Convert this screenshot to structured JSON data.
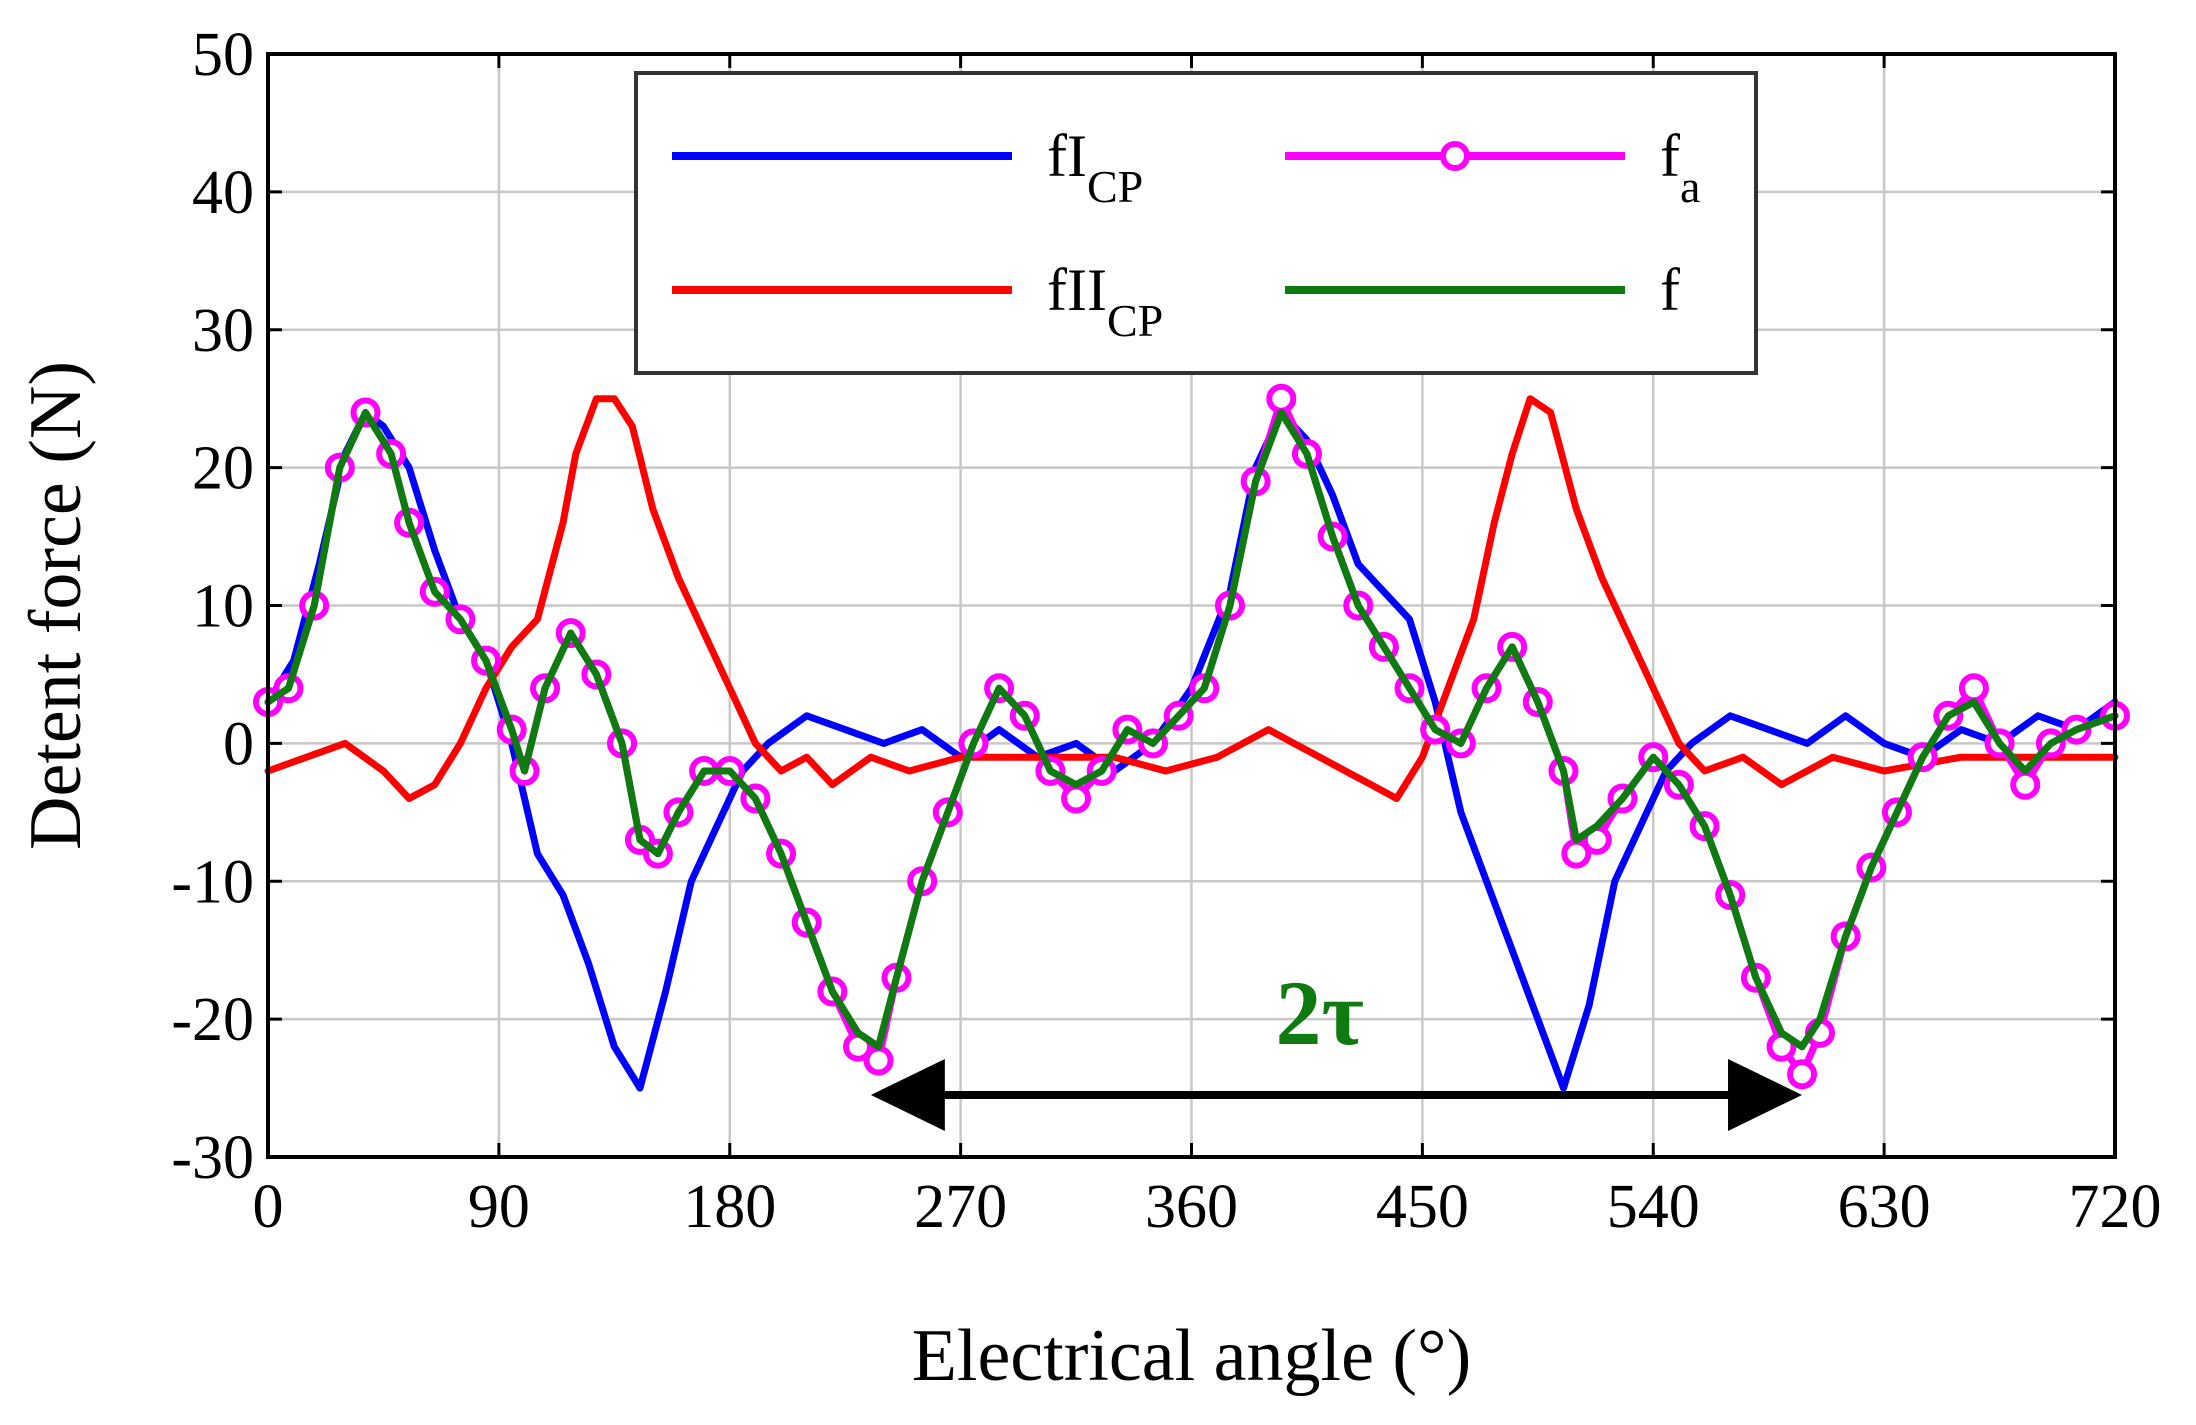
{
  "chart_data": {
    "type": "line",
    "title": "",
    "xlabel": "Electrical angle (°)",
    "ylabel": "Detent force (N)",
    "xlim": [
      0,
      720
    ],
    "ylim": [
      -30,
      50
    ],
    "xticks": [
      0,
      90,
      180,
      270,
      360,
      450,
      540,
      630,
      720
    ],
    "yticks": [
      -30,
      -20,
      -10,
      0,
      10,
      20,
      30,
      40,
      50
    ],
    "grid": true,
    "legend_position": "top-center",
    "series": [
      {
        "name": "fI",
        "subscript": "CP",
        "color": "#0000ff",
        "marker": "none",
        "x": [
          0,
          10,
          20,
          30,
          38,
          45,
          55,
          65,
          75,
          85,
          95,
          105,
          115,
          125,
          135,
          145,
          155,
          165,
          175,
          185,
          195,
          210,
          225,
          240,
          255,
          270,
          285,
          300,
          315,
          330,
          345,
          360,
          375,
          385,
          395,
          405,
          415,
          425,
          435,
          445,
          455,
          465,
          475,
          485,
          495,
          505,
          515,
          525,
          535,
          545,
          555,
          570,
          585,
          600,
          615,
          630,
          645,
          660,
          675,
          690,
          705,
          720
        ],
        "y": [
          3,
          6,
          13,
          21,
          24,
          23,
          20,
          14,
          9,
          6,
          0,
          -8,
          -11,
          -16,
          -22,
          -25,
          -18,
          -10,
          -6,
          -2,
          0,
          2,
          1,
          0,
          1,
          -1,
          1,
          -1,
          0,
          -2,
          0,
          4,
          11,
          20,
          24,
          22,
          18,
          13,
          11,
          9,
          3,
          -5,
          -10,
          -15,
          -20,
          -25,
          -19,
          -10,
          -6,
          -2,
          0,
          2,
          1,
          0,
          2,
          0,
          -1,
          1,
          0,
          2,
          1,
          3
        ]
      },
      {
        "name": "fII",
        "subscript": "CP",
        "color": "#ff0000",
        "marker": "none",
        "x": [
          0,
          15,
          30,
          45,
          55,
          65,
          75,
          85,
          95,
          105,
          115,
          120,
          128,
          135,
          142,
          150,
          160,
          170,
          180,
          190,
          200,
          210,
          220,
          235,
          250,
          270,
          290,
          310,
          330,
          350,
          370,
          380,
          390,
          400,
          410,
          420,
          430,
          440,
          450,
          460,
          470,
          478,
          485,
          492,
          500,
          510,
          520,
          530,
          540,
          550,
          560,
          575,
          590,
          610,
          630,
          660,
          690,
          720
        ],
        "y": [
          -2,
          -1,
          0,
          -2,
          -4,
          -3,
          0,
          4,
          7,
          9,
          16,
          21,
          25,
          25,
          23,
          17,
          12,
          8,
          4,
          0,
          -2,
          -1,
          -3,
          -1,
          -2,
          -1,
          -1,
          -1,
          -1,
          -2,
          -1,
          0,
          1,
          0,
          -1,
          -2,
          -3,
          -4,
          -1,
          4,
          9,
          16,
          21,
          25,
          24,
          17,
          12,
          8,
          4,
          0,
          -2,
          -1,
          -3,
          -1,
          -2,
          -1,
          -1,
          -1
        ]
      },
      {
        "name": "f",
        "subscript": "a",
        "color": "#ff00ff",
        "marker": "circle",
        "x": [
          0,
          8,
          18,
          28,
          38,
          48,
          55,
          65,
          75,
          85,
          95,
          100,
          108,
          118,
          128,
          138,
          145,
          152,
          160,
          170,
          180,
          190,
          200,
          210,
          220,
          230,
          238,
          245,
          255,
          265,
          275,
          285,
          295,
          305,
          315,
          325,
          335,
          345,
          355,
          365,
          375,
          385,
          395,
          405,
          415,
          425,
          435,
          445,
          455,
          465,
          475,
          485,
          495,
          505,
          510,
          518,
          528,
          540,
          550,
          560,
          570,
          580,
          590,
          598,
          605,
          615,
          625,
          635,
          645,
          655,
          665,
          675,
          685,
          695,
          705,
          720
        ],
        "y": [
          3,
          4,
          10,
          20,
          24,
          21,
          16,
          11,
          9,
          6,
          1,
          -2,
          4,
          8,
          5,
          0,
          -7,
          -8,
          -5,
          -2,
          -2,
          -4,
          -8,
          -13,
          -18,
          -22,
          -23,
          -17,
          -10,
          -5,
          0,
          4,
          2,
          -2,
          -4,
          -2,
          1,
          0,
          2,
          4,
          10,
          19,
          25,
          21,
          15,
          10,
          7,
          4,
          1,
          0,
          4,
          7,
          3,
          -2,
          -8,
          -7,
          -4,
          -1,
          -3,
          -6,
          -11,
          -17,
          -22,
          -24,
          -21,
          -14,
          -9,
          -5,
          -1,
          2,
          4,
          0,
          -3,
          0,
          1,
          2
        ]
      },
      {
        "name": "f",
        "subscript": "",
        "color": "#0f7a0f",
        "marker": "none",
        "x": [
          0,
          8,
          18,
          28,
          38,
          48,
          55,
          65,
          75,
          85,
          95,
          100,
          108,
          118,
          128,
          138,
          145,
          152,
          160,
          170,
          180,
          190,
          200,
          210,
          220,
          230,
          238,
          245,
          255,
          265,
          275,
          285,
          295,
          305,
          315,
          325,
          335,
          345,
          355,
          365,
          375,
          385,
          395,
          405,
          415,
          425,
          435,
          445,
          455,
          465,
          475,
          485,
          495,
          505,
          510,
          518,
          528,
          540,
          550,
          560,
          570,
          580,
          590,
          598,
          605,
          615,
          625,
          635,
          645,
          655,
          665,
          675,
          685,
          695,
          705,
          720
        ],
        "y": [
          3,
          4,
          10,
          20,
          24,
          21,
          16,
          11,
          9,
          6,
          1,
          -2,
          4,
          8,
          5,
          0,
          -7,
          -8,
          -5,
          -2,
          -2,
          -4,
          -8,
          -13,
          -18,
          -21,
          -22,
          -17,
          -10,
          -5,
          0,
          4,
          2,
          -2,
          -3,
          -2,
          1,
          0,
          2,
          4,
          10,
          19,
          24,
          21,
          15,
          10,
          7,
          4,
          1,
          0,
          4,
          7,
          3,
          -2,
          -7,
          -6,
          -4,
          -1,
          -3,
          -6,
          -11,
          -17,
          -21,
          -22,
          -20,
          -14,
          -9,
          -5,
          -1,
          2,
          3,
          0,
          -2,
          0,
          1,
          2
        ]
      }
    ],
    "annotation": {
      "text": "2τ",
      "color": "#0f7a0f",
      "text_x": 410,
      "text_y": -19.5,
      "arrow": {
        "x_start": 235,
        "x_end": 598,
        "y": -25.5,
        "color": "#000000"
      }
    }
  }
}
